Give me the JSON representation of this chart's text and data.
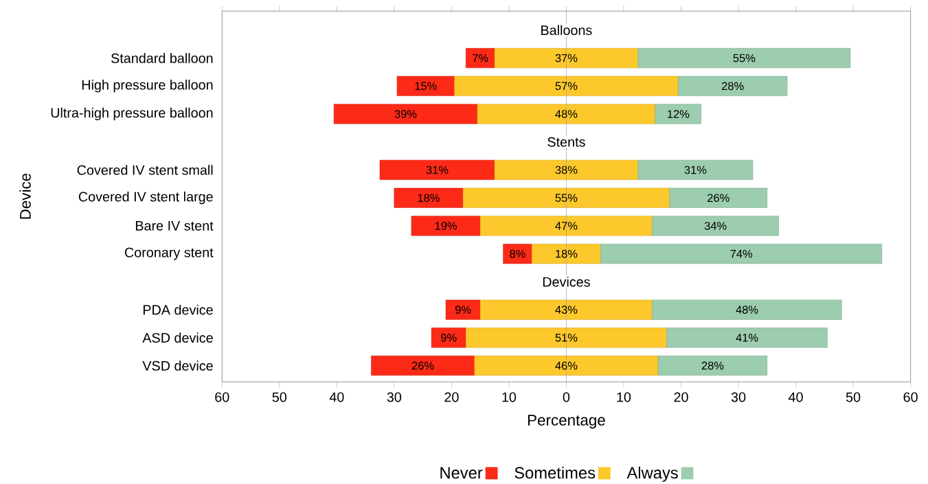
{
  "chart_data": {
    "type": "bar",
    "orientation": "horizontal",
    "xlabel": "Percentage",
    "ylabel": "Device",
    "categories": [
      null,
      "Standard balloon",
      "High pressure balloon",
      "Ultra-high pressure balloon",
      null,
      "Covered IV stent small",
      "Covered IV stent large",
      "Bare IV stent",
      "Coronary stent",
      null,
      "PDA device",
      "ASD device",
      "VSD device"
    ],
    "annotations": [
      "Balloons",
      "Stents",
      "Devices",
      {
        "text": "7%",
        "x": -15,
        "y": "Standard balloon"
      },
      {
        "text": "37%",
        "x": 0,
        "y": "Standard balloon"
      },
      {
        "text": "55%",
        "x": 31,
        "y": "Standard balloon"
      },
      {
        "text": "15%",
        "x": -24.5,
        "y": "High pressure balloon"
      },
      {
        "text": "57%",
        "x": 0,
        "y": "High pressure balloon"
      },
      {
        "text": "28%",
        "x": 29,
        "y": "High pressure balloon"
      },
      {
        "text": "39%",
        "x": -28,
        "y": "Ultra-high pressure balloon"
      },
      {
        "text": "48%",
        "x": 0,
        "y": "Ultra-high pressure balloon"
      },
      {
        "text": "12%",
        "x": 19.5,
        "y": "Ultra-high pressure balloon"
      },
      {
        "text": "31%",
        "x": -22.5,
        "y": "Covered IV stent small"
      },
      {
        "text": "38%",
        "x": 0,
        "y": "Covered IV stent small"
      },
      {
        "text": "31%",
        "x": 22.5,
        "y": "Covered IV stent small"
      },
      {
        "text": "18%",
        "x": -24,
        "y": "Covered IV stent large"
      },
      {
        "text": "55%",
        "x": 0,
        "y": "Covered IV stent large"
      },
      {
        "text": "26%",
        "x": 26.5,
        "y": "Covered IV stent large"
      },
      {
        "text": "19%",
        "x": -21,
        "y": "Bare IV stent"
      },
      {
        "text": "47%",
        "x": 0,
        "y": "Bare IV stent"
      },
      {
        "text": "34%",
        "x": 26,
        "y": "Bare IV stent"
      },
      {
        "text": "8%",
        "x": -8.5,
        "y": "Coronary stent"
      },
      {
        "text": "18%",
        "x": 0,
        "y": "Coronary stent"
      },
      {
        "text": "74%",
        "x": 30.5,
        "y": "Coronary stent"
      },
      {
        "text": "9%",
        "x": -18,
        "y": "PDA device"
      },
      {
        "text": "43%",
        "x": 0,
        "y": "PDA device"
      },
      {
        "text": "48%",
        "x": 31.5,
        "y": "PDA device"
      },
      {
        "text": "9%",
        "x": -20.5,
        "y": "ASD device"
      },
      {
        "text": "51%",
        "x": 0,
        "y": "ASD device"
      },
      {
        "text": "41%",
        "x": 31.5,
        "y": "ASD device"
      },
      {
        "text": "26%",
        "x": -25,
        "y": "VSD device"
      },
      {
        "text": "46%",
        "x": 0,
        "y": "VSD device"
      },
      {
        "text": "28%",
        "x": 25.5,
        "y": "VSD device"
      }
    ],
    "xlim": [
      -60,
      60
    ],
    "xticks": [
      {
        "value": -60,
        "label": "60"
      },
      {
        "value": -50,
        "label": "50"
      },
      {
        "value": -40,
        "label": "40"
      },
      {
        "value": -30,
        "label": "30"
      },
      {
        "value": -20,
        "label": "20"
      },
      {
        "value": -10,
        "label": "10"
      },
      0,
      10,
      20,
      30,
      40,
      50,
      60
    ],
    "ref_lines": [
      {
        "axis": "x",
        "value": 0,
        "color": "#a6a6a6"
      }
    ],
    "legend": "bottom",
    "series": [
      {
        "name": "Never",
        "color": "#fc2a17",
        "values": [
          null,
          5,
          10,
          25,
          null,
          20,
          12,
          12,
          5,
          null,
          6,
          6,
          18
        ],
        "base": [
          null,
          -17.5,
          -29.5,
          -40.5,
          null,
          -32.5,
          -30,
          -27,
          -11,
          null,
          -21,
          -23.5,
          -34
        ]
      },
      {
        "name": "Sometimes",
        "color": "#fdc82b",
        "values": [
          null,
          25,
          39,
          31,
          null,
          25,
          36,
          30,
          12,
          null,
          30,
          35,
          32
        ],
        "base": [
          null,
          -12.5,
          -19.5,
          -15.5,
          null,
          -12.5,
          -18,
          -15,
          -6,
          null,
          -15,
          -17.5,
          -16
        ]
      },
      {
        "name": "Always",
        "color": "#9ccdae",
        "values": [
          null,
          37,
          19,
          8,
          null,
          20,
          17,
          22,
          49,
          null,
          33,
          28,
          19
        ],
        "base": [
          null,
          12.5,
          19.5,
          15.5,
          null,
          12.5,
          18,
          15,
          6,
          null,
          15,
          17.5,
          16
        ]
      }
    ]
  }
}
